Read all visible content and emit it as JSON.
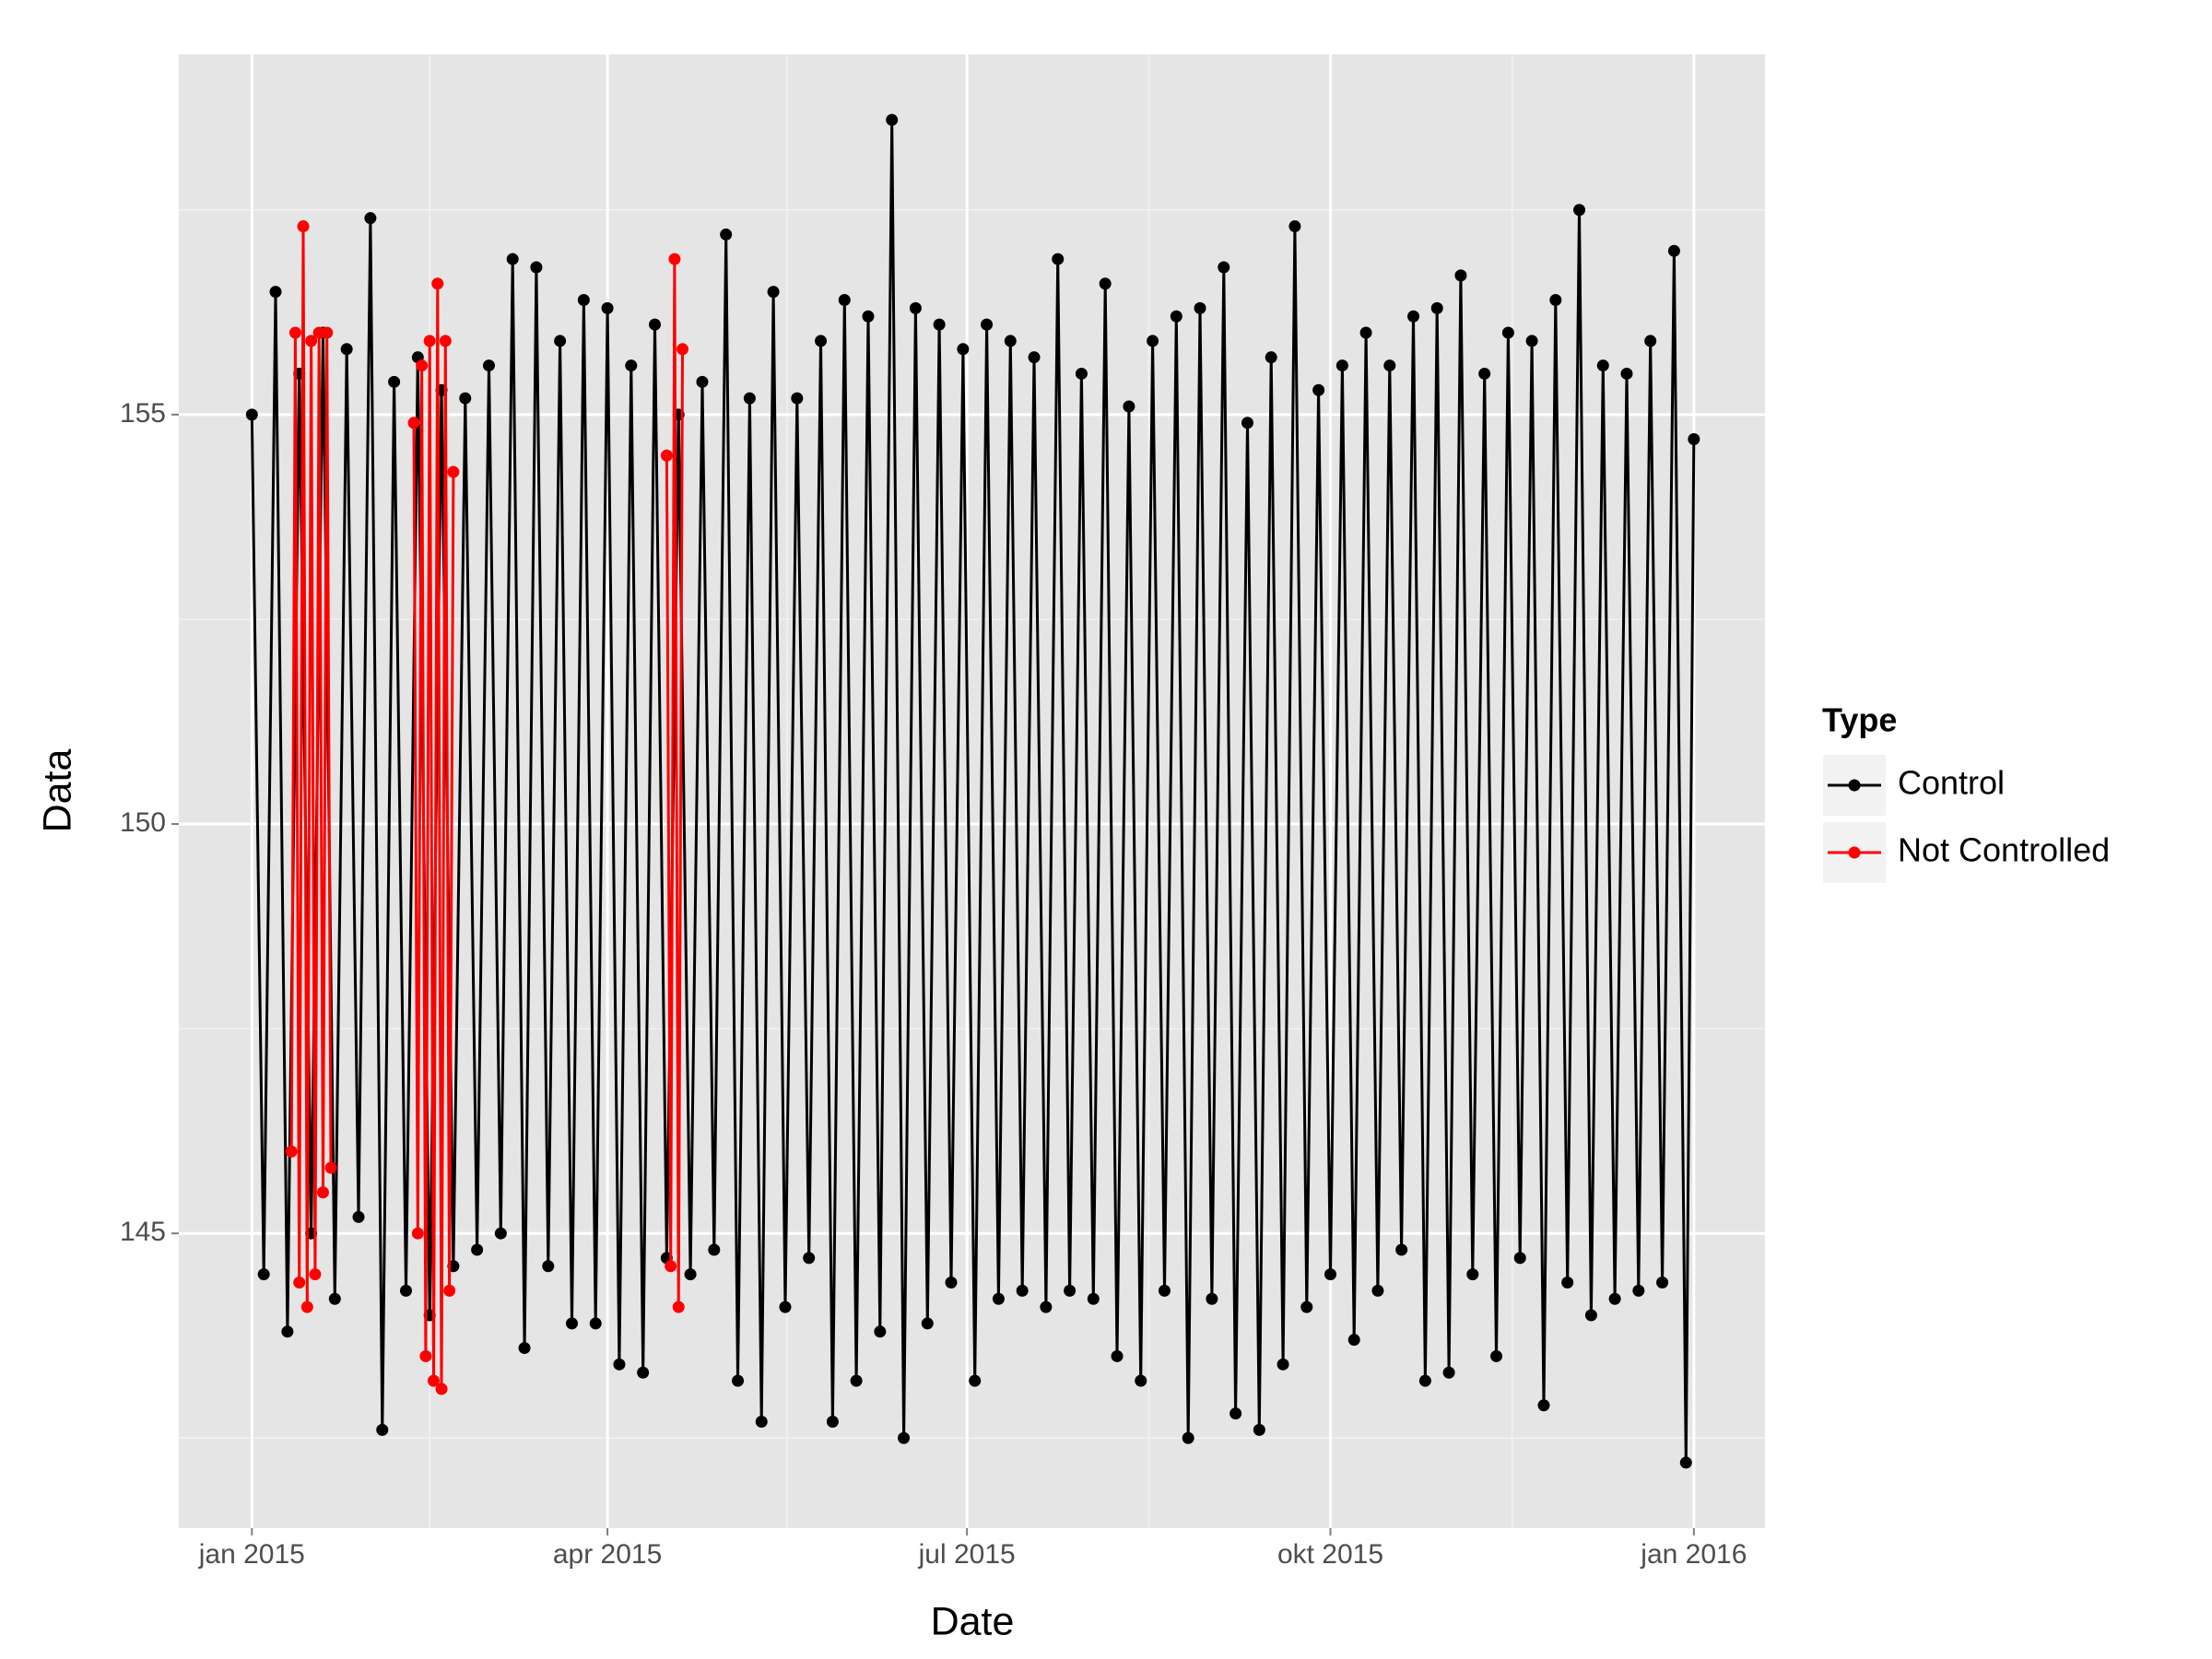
{
  "chart_data": {
    "type": "line",
    "x_label": "Date",
    "y_label": "Data",
    "legend_title": "Type",
    "legend_position": "right",
    "grid": true,
    "xlim": [
      -18.5,
      383
    ],
    "xticks": [
      {
        "value": 0,
        "label": "jan 2015"
      },
      {
        "value": 90,
        "label": "apr 2015"
      },
      {
        "value": 181,
        "label": "jul 2015"
      },
      {
        "value": 273,
        "label": "okt 2015"
      },
      {
        "value": 365,
        "label": "jan 2016"
      }
    ],
    "x_minor_grid": [
      45,
      135.5,
      227,
      319
    ],
    "ylim": [
      141.4,
      159.4
    ],
    "yticks": [
      145,
      150,
      155
    ],
    "y_minor_grid": [
      142.5,
      147.5,
      152.5,
      157.5
    ],
    "series": [
      {
        "name": "Control",
        "color": "#000000",
        "x": [
          0,
          3,
          6,
          9,
          12,
          15,
          18,
          21,
          24,
          27,
          30,
          33,
          36,
          39,
          42,
          45,
          48,
          51,
          54,
          57,
          60,
          63,
          66,
          69,
          72,
          75,
          78,
          81,
          84,
          87,
          90,
          93,
          96,
          99,
          102,
          105,
          108,
          111,
          114,
          117,
          120,
          123,
          126,
          129,
          132,
          135,
          138,
          141,
          144,
          147,
          150,
          153,
          156,
          159,
          162,
          165,
          168,
          171,
          174,
          177,
          180,
          183,
          186,
          189,
          192,
          195,
          198,
          201,
          204,
          207,
          210,
          213,
          216,
          219,
          222,
          225,
          228,
          231,
          234,
          237,
          240,
          243,
          246,
          249,
          252,
          255,
          258,
          261,
          264,
          267,
          270,
          273,
          276,
          279,
          282,
          285,
          288,
          291,
          294,
          297,
          300,
          303,
          306,
          309,
          312,
          315,
          318,
          321,
          324,
          327,
          330,
          333,
          336,
          339,
          342,
          345,
          348,
          351,
          354,
          357,
          360,
          363,
          365
        ],
        "values": [
          155.0,
          144.5,
          156.5,
          143.8,
          155.5,
          145.0,
          156.0,
          144.2,
          155.8,
          145.2,
          157.4,
          142.6,
          155.4,
          144.3,
          155.7,
          144.0,
          155.3,
          144.6,
          155.2,
          144.8,
          155.6,
          145.0,
          156.9,
          143.6,
          156.8,
          144.6,
          155.9,
          143.9,
          156.4,
          143.9,
          156.3,
          143.4,
          155.6,
          143.3,
          156.1,
          144.7,
          155.0,
          144.5,
          155.4,
          144.8,
          157.2,
          143.2,
          155.2,
          142.7,
          156.5,
          144.1,
          155.2,
          144.7,
          155.9,
          142.7,
          156.4,
          143.2,
          156.2,
          143.8,
          158.6,
          142.5,
          156.3,
          143.9,
          156.1,
          144.4,
          155.8,
          143.2,
          156.1,
          144.2,
          155.9,
          144.3,
          155.7,
          144.1,
          156.9,
          144.3,
          155.5,
          144.2,
          156.6,
          143.5,
          155.1,
          143.2,
          155.9,
          144.3,
          156.2,
          142.5,
          156.3,
          144.2,
          156.8,
          142.8,
          154.9,
          142.6,
          155.7,
          143.4,
          157.3,
          144.1,
          155.3,
          144.5,
          155.6,
          143.7,
          156.0,
          144.3,
          155.6,
          144.8,
          156.2,
          143.2,
          156.3,
          143.3,
          156.7,
          144.5,
          155.5,
          143.5,
          156.0,
          144.7,
          155.9,
          142.9,
          156.4,
          144.4,
          157.5,
          144.0,
          155.6,
          144.2,
          155.5,
          144.3,
          155.9,
          144.4,
          157.0,
          142.2,
          154.7
        ]
      },
      {
        "name": "Not Controlled",
        "color": "#ff0000",
        "x": [
          10,
          11,
          12,
          13,
          14,
          15,
          16,
          17,
          18,
          19,
          20,
          30,
          41,
          42,
          43,
          44,
          45,
          46,
          47,
          48,
          49,
          50,
          51,
          80,
          105,
          106,
          107,
          108,
          109
        ],
        "values": [
          146.0,
          156.0,
          144.4,
          157.3,
          144.1,
          155.9,
          144.5,
          156.0,
          145.5,
          156.0,
          145.8,
          null,
          154.9,
          145.0,
          155.6,
          143.5,
          155.9,
          143.2,
          156.6,
          143.1,
          155.9,
          144.3,
          154.3,
          null,
          154.5,
          144.6,
          156.9,
          144.1,
          155.8
        ]
      }
    ]
  }
}
